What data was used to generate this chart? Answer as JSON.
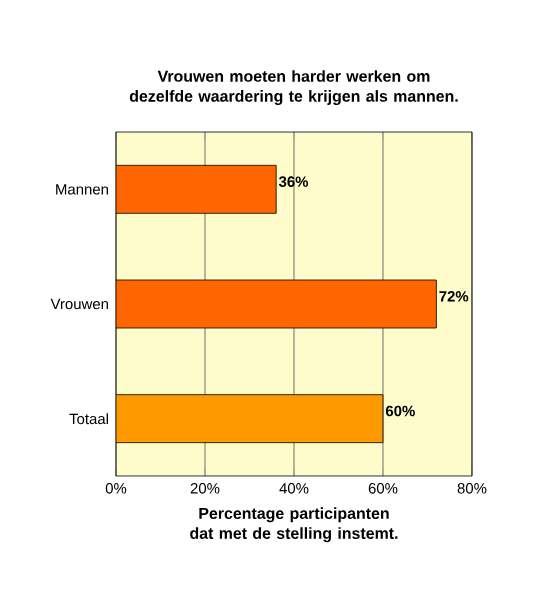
{
  "chart_data": {
    "type": "bar",
    "orientation": "horizontal",
    "title": "Vrouwen moeten harder werken om dezelfde waardering te krijgen als mannen.",
    "xlabel": "Percentage participanten dat met de stelling instemt.",
    "categories": [
      "Mannen",
      "Vrouwen",
      "Totaal"
    ],
    "values": [
      36,
      72,
      60
    ],
    "colors": [
      "#ff6600",
      "#ff6600",
      "#ff9900"
    ],
    "value_labels": [
      "36%",
      "72%",
      "60%"
    ],
    "xlim": [
      0,
      80
    ],
    "xticks": [
      {
        "value": 0,
        "label": "0%"
      },
      {
        "value": 20,
        "label": "20%"
      },
      {
        "value": 40,
        "label": "40%"
      },
      {
        "value": 60,
        "label": "60%"
      },
      {
        "value": 80,
        "label": "80%"
      }
    ],
    "grid": "x"
  }
}
